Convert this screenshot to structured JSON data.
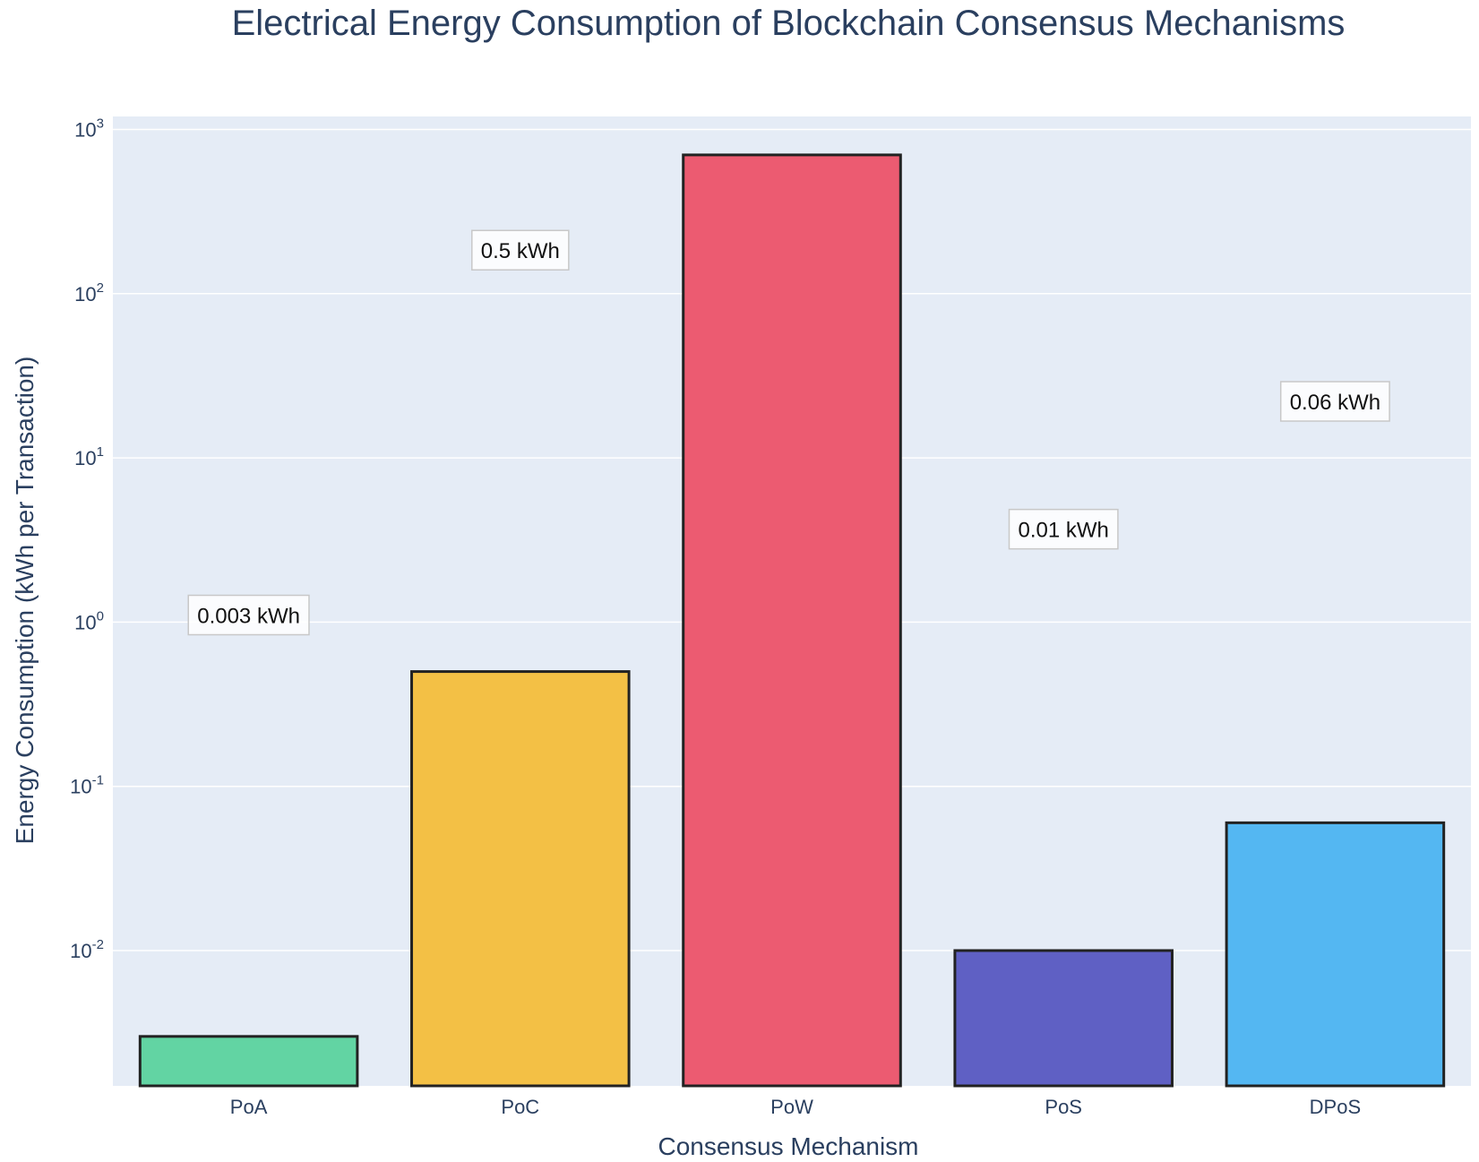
{
  "chart_data": {
    "type": "bar",
    "title": "Electrical Energy Consumption of Blockchain Consensus Mechanisms",
    "xlabel": "Consensus Mechanism",
    "ylabel": "Energy Consumption (kWh per Transaction)",
    "categories": [
      "PoA",
      "PoC",
      "PoW",
      "PoS",
      "DPoS"
    ],
    "values": [
      0.003,
      0.5,
      700,
      0.01,
      0.06
    ],
    "colors": [
      "#62d4a3",
      "#f3c045",
      "#ec5b71",
      "#5f60c4",
      "#54b7f2"
    ],
    "bar_outline_color": "#222222",
    "annotations": [
      {
        "category": "PoA",
        "text": "0.003 kWh"
      },
      {
        "category": "PoC",
        "text": "0.5 kWh"
      },
      {
        "category": "PoS",
        "text": "0.01 kWh"
      },
      {
        "category": "DPoS",
        "text": "0.06 kWh"
      }
    ],
    "yscale": "log",
    "ylim": [
      0.0015,
      1200
    ],
    "yticks": [
      {
        "value": 0.01,
        "base": "10",
        "exp": "-2"
      },
      {
        "value": 0.1,
        "base": "10",
        "exp": "-1"
      },
      {
        "value": 1,
        "base": "10",
        "exp": "0"
      },
      {
        "value": 10,
        "base": "10",
        "exp": "1"
      },
      {
        "value": 100,
        "base": "10",
        "exp": "2"
      },
      {
        "value": 1000,
        "base": "10",
        "exp": "3"
      }
    ],
    "grid": true,
    "plot_background": "#e5ecf6",
    "grid_color": "#ffffff",
    "text_color": "#2a3f5f"
  }
}
